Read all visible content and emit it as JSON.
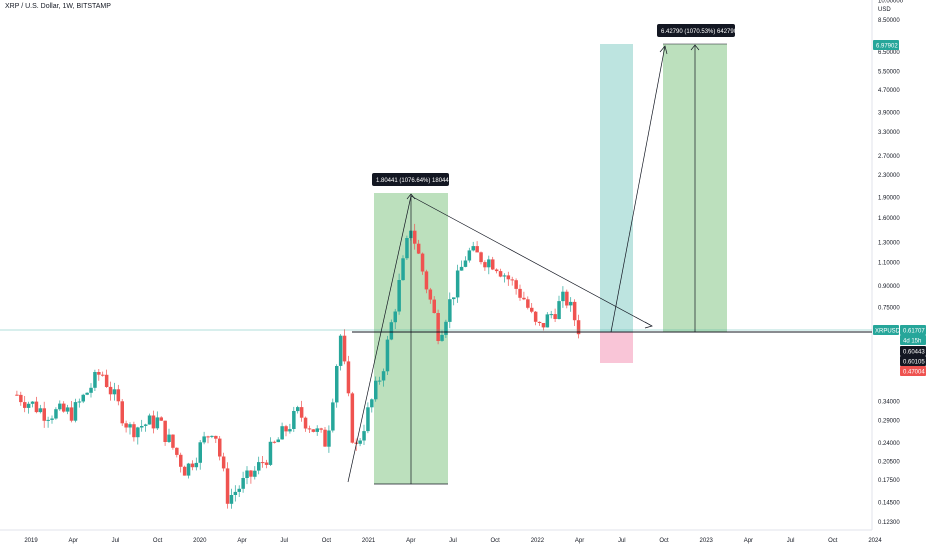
{
  "header": {
    "title": "XRP / U.S. Dollar, 1W, BITSTAMP"
  },
  "y_axis": {
    "currency": "USD",
    "ticks": [
      "10.00000",
      "8.50000",
      "6.50000",
      "5.50000",
      "4.70000",
      "3.90000",
      "3.30000",
      "2.70000",
      "2.30000",
      "1.90000",
      "1.60000",
      "1.30000",
      "1.10000",
      "0.90000",
      "0.75000",
      "0.34000",
      "0.29000",
      "0.24000",
      "0.20500",
      "0.17500",
      "0.14500",
      "0.12300"
    ]
  },
  "x_axis": {
    "ticks": [
      "2019",
      "Apr",
      "Jul",
      "Oct",
      "2020",
      "Apr",
      "Jul",
      "Oct",
      "2021",
      "Apr",
      "Jul",
      "Oct",
      "2022",
      "Apr",
      "Jul",
      "Oct",
      "2023",
      "Apr",
      "Jul",
      "Oct",
      "2024"
    ]
  },
  "price_tags": {
    "target": {
      "text": "6.97902",
      "color": "#26a69a"
    },
    "symbol": {
      "text": "XRPUSD",
      "color": "#26a69a"
    },
    "last": {
      "text": "0.61707",
      "color": "#26a69a"
    },
    "countdown": {
      "text": "4d 15h",
      "color": "#26a69a"
    },
    "level_a": {
      "text": "0.60443",
      "color": "#131722"
    },
    "level_b": {
      "text": "0.60105",
      "color": "#131722"
    },
    "stop": {
      "text": "0.47004",
      "color": "#ef5350"
    }
  },
  "annotations": {
    "measure_1": "1.80441 (1076.64%) 180441",
    "measure_2": "6.42790 (1070.53%) 642790"
  },
  "colors": {
    "up": "#26a69a",
    "down": "#ef5350",
    "measure_fill": "#a5d6a7",
    "target_zone": "#b2dfdb",
    "stop_zone": "#f8bbd0"
  },
  "chart_data": {
    "type": "candlestick",
    "title": "XRP / U.S. Dollar, 1W, BITSTAMP",
    "y_scale": "log",
    "ylim": [
      0.11,
      11.0
    ],
    "x_range": [
      "2018-12",
      "2024-01"
    ],
    "series": [
      {
        "name": "XRPUSD",
        "approx_closes": [
          {
            "date": "2018-12",
            "value": 0.36
          },
          {
            "date": "2019-02",
            "value": 0.31
          },
          {
            "date": "2019-04",
            "value": 0.31
          },
          {
            "date": "2019-06",
            "value": 0.44
          },
          {
            "date": "2019-08",
            "value": 0.27
          },
          {
            "date": "2019-10",
            "value": 0.29
          },
          {
            "date": "2019-12",
            "value": 0.19
          },
          {
            "date": "2020-02",
            "value": 0.28
          },
          {
            "date": "2020-03",
            "value": 0.15
          },
          {
            "date": "2020-05",
            "value": 0.19
          },
          {
            "date": "2020-08",
            "value": 0.31
          },
          {
            "date": "2020-10",
            "value": 0.24
          },
          {
            "date": "2020-11",
            "value": 0.6
          },
          {
            "date": "2020-12",
            "value": 0.22
          },
          {
            "date": "2021-02",
            "value": 0.45
          },
          {
            "date": "2021-04",
            "value": 1.5
          },
          {
            "date": "2021-05",
            "value": 0.95
          },
          {
            "date": "2021-06",
            "value": 0.6
          },
          {
            "date": "2021-08",
            "value": 1.2
          },
          {
            "date": "2021-10",
            "value": 1.1
          },
          {
            "date": "2021-12",
            "value": 0.82
          },
          {
            "date": "2022-01",
            "value": 0.62
          },
          {
            "date": "2022-03",
            "value": 0.82
          },
          {
            "date": "2022-04",
            "value": 0.62
          }
        ]
      }
    ],
    "levels": {
      "support": 0.61707,
      "last": 0.61707,
      "stop": 0.47004,
      "target": 6.97902
    },
    "trendline": {
      "from": {
        "date": "2021-04",
        "value": 1.96
      },
      "to": {
        "date": "2022-10",
        "value": 0.64
      }
    },
    "measures": [
      {
        "label": "1.80441 (1076.64%) 180441",
        "from": {
          "date": "2020-12",
          "value": 0.167
        },
        "to": {
          "date": "2021-04",
          "value": 1.96
        }
      },
      {
        "label": "6.42790 (1070.53%) 642790",
        "from": {
          "date": "2022-07",
          "value": 0.617
        },
        "to": {
          "date": "2022-11",
          "value": 6.98
        }
      }
    ]
  }
}
